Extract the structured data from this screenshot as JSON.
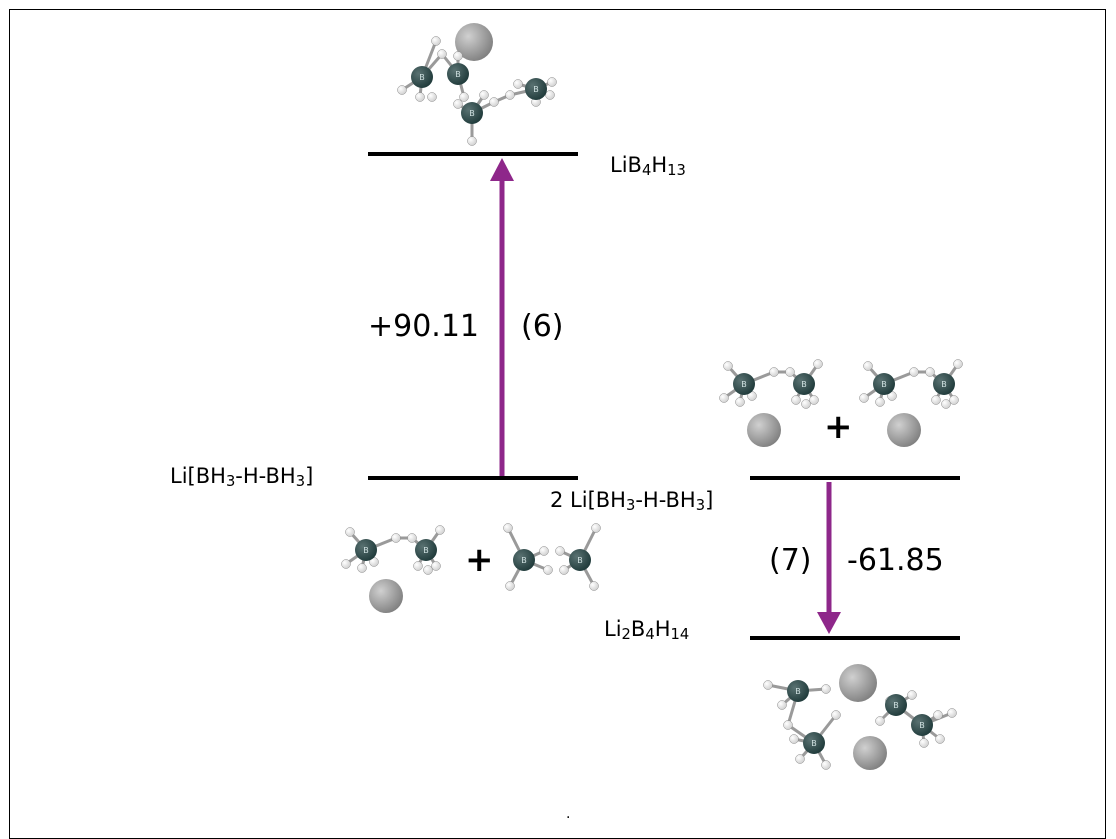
{
  "levels": {
    "top": {
      "prefix": "LiB",
      "s1": "4",
      "mid": "H",
      "s2": "13"
    },
    "middle_left": {
      "p1": "Li[BH",
      "s1": "3",
      "p2": "-H-BH",
      "s2": "3",
      "p3": "]"
    },
    "middle_right": {
      "p1": "2 Li[BH",
      "s1": "3",
      "p2": "-H-BH",
      "s2": "3",
      "p3": "]"
    },
    "bottom": {
      "p1": "Li",
      "s1": "2",
      "p2": "B",
      "s2": "4",
      "p3": "H",
      "s3": "14"
    }
  },
  "reactions": {
    "r6": {
      "energy": "+90.11",
      "number": "(6)"
    },
    "r7": {
      "energy": "-61.85",
      "number": "(7)"
    }
  },
  "plus_sign": "+",
  "atom_labels": {
    "boron": "B",
    "hydrogen": "H"
  },
  "footer_mark": ".",
  "colors": {
    "arrow": "#8e278a",
    "boron": "#1f3a3a",
    "hydrogen": "#cfcfcf",
    "lithium": "#808080",
    "level_line": "#000000"
  }
}
